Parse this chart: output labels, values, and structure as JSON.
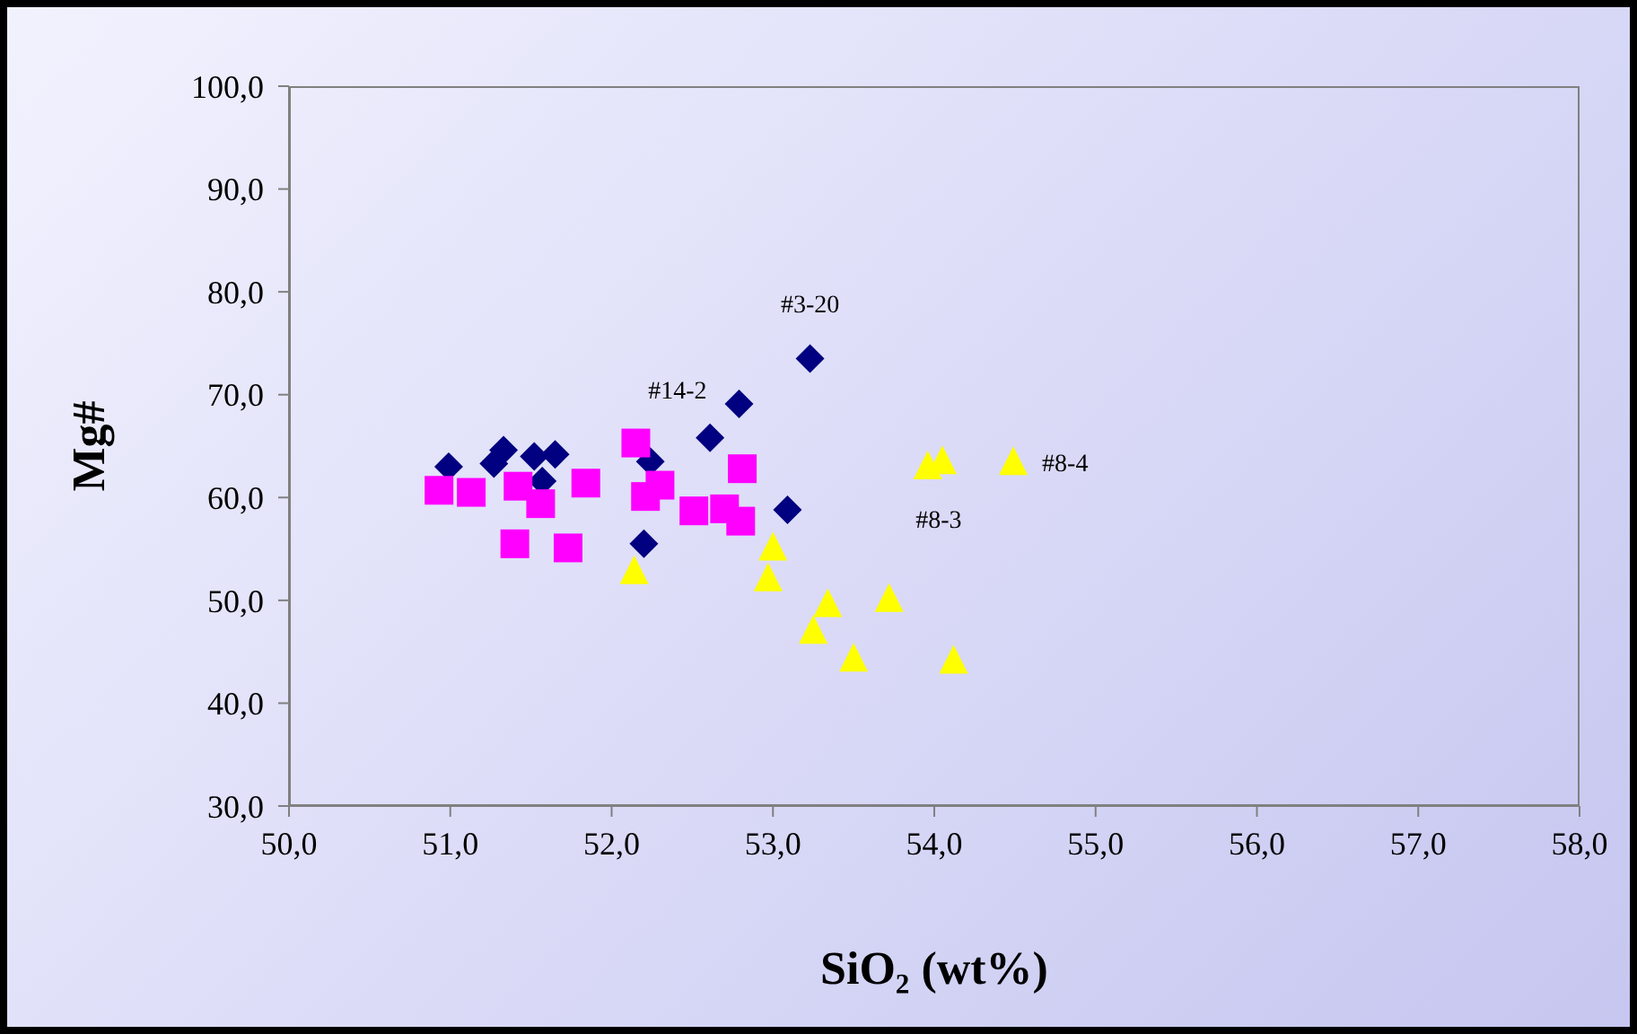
{
  "chart_data": {
    "type": "scatter",
    "xlabel": "SiO₂ (wt%)",
    "ylabel": "Mg#",
    "xlim": [
      50,
      58
    ],
    "ylim": [
      30,
      100
    ],
    "xticks": [
      {
        "value": 50,
        "label": "50,0"
      },
      {
        "value": 51,
        "label": "51,0"
      },
      {
        "value": 52,
        "label": "52,0"
      },
      {
        "value": 53,
        "label": "53,0"
      },
      {
        "value": 54,
        "label": "54,0"
      },
      {
        "value": 55,
        "label": "55,0"
      },
      {
        "value": 56,
        "label": "56,0"
      },
      {
        "value": 57,
        "label": "57,0"
      },
      {
        "value": 58,
        "label": "58,0"
      }
    ],
    "yticks": [
      {
        "value": 30,
        "label": "30,0"
      },
      {
        "value": 40,
        "label": "40,0"
      },
      {
        "value": 50,
        "label": "50,0"
      },
      {
        "value": 60,
        "label": "60,0"
      },
      {
        "value": 70,
        "label": "70,0"
      },
      {
        "value": 80,
        "label": "80,0"
      },
      {
        "value": 90,
        "label": "90,0"
      },
      {
        "value": 100,
        "label": "100,0"
      }
    ],
    "grid": false,
    "legend": false,
    "series": [
      {
        "color": "#000080",
        "marker": "diamond",
        "x": [
          50.99,
          51.27,
          51.33,
          51.52,
          51.65,
          51.57,
          52.12,
          52.24,
          52.2,
          52.61,
          52.79,
          53.23,
          53.09
        ],
        "values": [
          63.0,
          63.3,
          64.6,
          64.0,
          64.2,
          61.6,
          null,
          63.5,
          55.5,
          65.8,
          69.1,
          73.5,
          58.8
        ]
      },
      {
        "color": "#ff00ff",
        "marker": "square",
        "x": [
          50.93,
          51.13,
          51.42,
          51.56,
          51.84,
          51.4,
          51.73,
          52.15,
          52.3,
          52.21,
          52.51,
          52.7,
          52.8,
          52.81
        ],
        "values": [
          60.7,
          60.5,
          61.1,
          59.4,
          61.4,
          55.5,
          55.1,
          65.3,
          61.2,
          60.1,
          58.7,
          58.9,
          57.7,
          62.8
        ]
      },
      {
        "color": "#ffff00",
        "marker": "triangle",
        "x": [
          52.14,
          53.0,
          52.97,
          53.34,
          53.25,
          53.72,
          53.5,
          54.12,
          53.96,
          54.05,
          54.49
        ],
        "values": [
          52.8,
          55.1,
          52.1,
          49.6,
          47.0,
          50.1,
          44.3,
          44.1,
          63.0,
          63.5,
          63.4
        ]
      }
    ],
    "annotations": [
      {
        "text": "#3-20",
        "x": 53.23,
        "y": 73.5
      },
      {
        "text": "#14-2",
        "x": 52.79,
        "y": 69.1
      },
      {
        "text": "#8-3",
        "x": 53.96,
        "y": 63.0
      },
      {
        "text": "#8-4",
        "x": 54.49,
        "y": 63.4
      }
    ]
  }
}
